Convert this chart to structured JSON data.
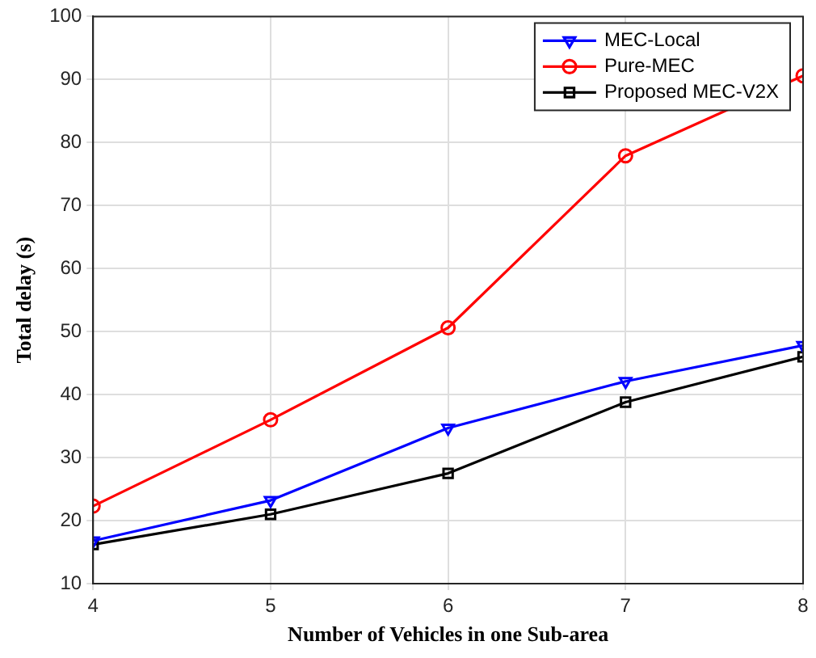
{
  "chart_data": {
    "type": "line",
    "xlabel": "Number of Vehicles in one Sub-area",
    "ylabel": "Total delay (s)",
    "x": [
      4,
      5,
      6,
      7,
      8
    ],
    "series": [
      {
        "name": "MEC-Local",
        "color": "#0000ff",
        "marker": "triangle-down",
        "values": [
          16.8,
          23.2,
          34.7,
          42.1,
          47.8
        ]
      },
      {
        "name": "Pure-MEC",
        "color": "#ff0000",
        "marker": "circle",
        "values": [
          22.3,
          36,
          50.6,
          77.9,
          90.6
        ]
      },
      {
        "name": "Proposed MEC-V2X",
        "color": "#000000",
        "marker": "square",
        "values": [
          16.2,
          21,
          27.5,
          38.8,
          46
        ]
      }
    ],
    "xlim": [
      4,
      8
    ],
    "xticks": [
      4,
      5,
      6,
      7,
      8
    ],
    "ylim": [
      10,
      100
    ],
    "yticks": [
      10,
      20,
      30,
      40,
      50,
      60,
      70,
      80,
      90,
      100
    ],
    "grid": true,
    "legend": "top right",
    "line_style": "solid"
  }
}
